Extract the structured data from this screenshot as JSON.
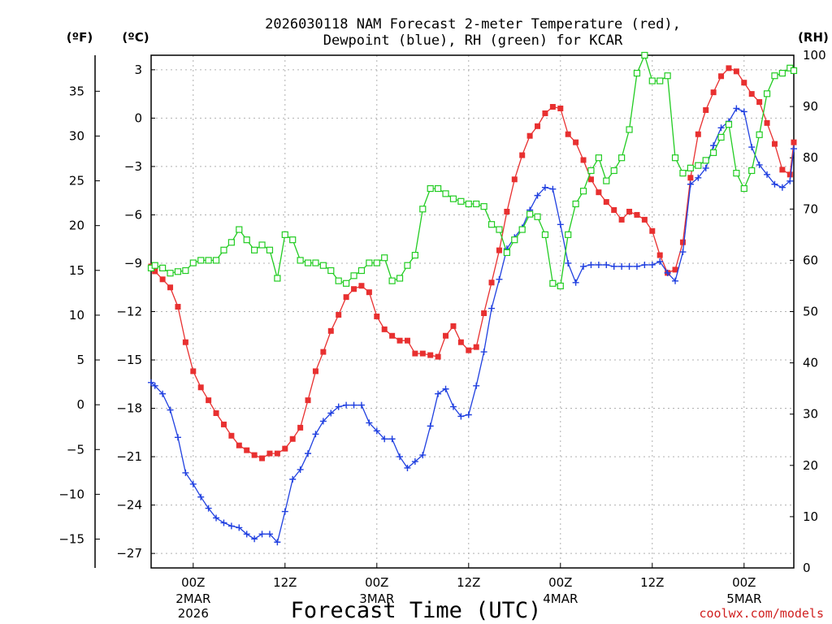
{
  "chart_data": {
    "type": "line",
    "title_lines": [
      "2026030118 NAM Forecast 2-meter Temperature (red),",
      "Dewpoint (blue), RH (green) for KCAR"
    ],
    "xlabel": "Forecast Time (UTC)",
    "credit": "coolwx.com/models",
    "units": {
      "fahrenheit": "(ºF)",
      "celsius": "(ºC)",
      "rh": "(RH)"
    },
    "x_axis": {
      "range_hours": [
        -5.5,
        78.5
      ],
      "ticks": [
        {
          "hour": 0,
          "label": "00Z",
          "sub": [
            "2MAR",
            "2026"
          ]
        },
        {
          "hour": 12,
          "label": "12Z",
          "sub": []
        },
        {
          "hour": 24,
          "label": "00Z",
          "sub": [
            "3MAR"
          ]
        },
        {
          "hour": 36,
          "label": "12Z",
          "sub": []
        },
        {
          "hour": 48,
          "label": "00Z",
          "sub": [
            "4MAR"
          ]
        },
        {
          "hour": 60,
          "label": "12Z",
          "sub": []
        },
        {
          "hour": 72,
          "label": "00Z",
          "sub": [
            "5MAR"
          ]
        }
      ]
    },
    "y_celsius": {
      "range": [
        -27.9,
        3.9
      ],
      "ticks": [
        "3",
        "0",
        "−3",
        "−6",
        "−9",
        "−12",
        "−15",
        "−18",
        "−21",
        "−24",
        "−27"
      ],
      "tick_values": [
        3,
        0,
        -3,
        -6,
        -9,
        -12,
        -15,
        -18,
        -21,
        -24,
        -27
      ]
    },
    "y_fahrenheit": {
      "ticks": [
        "35",
        "30",
        "25",
        "20",
        "15",
        "10",
        "5",
        "0",
        "−5",
        "−10",
        "−15"
      ],
      "tick_values": [
        35,
        30,
        25,
        20,
        15,
        10,
        5,
        0,
        -5,
        -10,
        -15
      ]
    },
    "y_rh": {
      "range": [
        0,
        100
      ],
      "ticks": [
        "100",
        "90",
        "80",
        "70",
        "60",
        "50",
        "40",
        "30",
        "20",
        "10",
        "0"
      ],
      "tick_values": [
        100,
        90,
        80,
        70,
        60,
        50,
        40,
        30,
        20,
        10,
        0
      ]
    },
    "series": [
      {
        "name": "Temperature",
        "unit": "C",
        "color": "#e83030",
        "marker": "filled-square",
        "points": [
          [
            -5.5,
            -9.2
          ],
          [
            -5,
            -9.5
          ],
          [
            -4,
            -10
          ],
          [
            -3,
            -10.5
          ],
          [
            -2,
            -11.7
          ],
          [
            -1,
            -13.9
          ],
          [
            0,
            -15.7
          ],
          [
            1,
            -16.7
          ],
          [
            2,
            -17.5
          ],
          [
            3,
            -18.3
          ],
          [
            4,
            -19
          ],
          [
            5,
            -19.7
          ],
          [
            6,
            -20.3
          ],
          [
            7,
            -20.6
          ],
          [
            8,
            -20.9
          ],
          [
            9,
            -21.1
          ],
          [
            10,
            -20.8
          ],
          [
            11,
            -20.8
          ],
          [
            12,
            -20.5
          ],
          [
            13,
            -19.9
          ],
          [
            14,
            -19.2
          ],
          [
            15,
            -17.5
          ],
          [
            16,
            -15.7
          ],
          [
            17,
            -14.5
          ],
          [
            18,
            -13.2
          ],
          [
            19,
            -12.2
          ],
          [
            20,
            -11.1
          ],
          [
            21,
            -10.6
          ],
          [
            22,
            -10.4
          ],
          [
            23,
            -10.8
          ],
          [
            24,
            -12.3
          ],
          [
            25,
            -13.1
          ],
          [
            26,
            -13.5
          ],
          [
            27,
            -13.8
          ],
          [
            28,
            -13.8
          ],
          [
            29,
            -14.6
          ],
          [
            30,
            -14.6
          ],
          [
            31,
            -14.7
          ],
          [
            32,
            -14.8
          ],
          [
            33,
            -13.5
          ],
          [
            34,
            -12.9
          ],
          [
            35,
            -13.9
          ],
          [
            36,
            -14.4
          ],
          [
            37,
            -14.2
          ],
          [
            38,
            -12.1
          ],
          [
            39,
            -10.2
          ],
          [
            40,
            -8.2
          ],
          [
            41,
            -5.8
          ],
          [
            42,
            -3.8
          ],
          [
            43,
            -2.3
          ],
          [
            44,
            -1.1
          ],
          [
            45,
            -0.5
          ],
          [
            46,
            0.3
          ],
          [
            47,
            0.7
          ],
          [
            48,
            0.6
          ],
          [
            49,
            -1
          ],
          [
            50,
            -1.5
          ],
          [
            51,
            -2.6
          ],
          [
            52,
            -3.8
          ],
          [
            53,
            -4.6
          ],
          [
            54,
            -5.2
          ],
          [
            55,
            -5.7
          ],
          [
            56,
            -6.3
          ],
          [
            57,
            -5.8
          ],
          [
            58,
            -6
          ],
          [
            59,
            -6.3
          ],
          [
            60,
            -7
          ],
          [
            61,
            -8.5
          ],
          [
            62,
            -9.6
          ],
          [
            63,
            -9.4
          ],
          [
            64,
            -7.7
          ],
          [
            65,
            -3.7
          ],
          [
            66,
            -1.0
          ],
          [
            67,
            0.5
          ],
          [
            68,
            1.6
          ],
          [
            69,
            2.6
          ],
          [
            70,
            3.1
          ],
          [
            71,
            2.9
          ],
          [
            72,
            2.2
          ],
          [
            73,
            1.5
          ],
          [
            74,
            1.0
          ],
          [
            75,
            -0.3
          ],
          [
            76,
            -1.6
          ],
          [
            77,
            -3.2
          ],
          [
            78,
            -3.5
          ],
          [
            78.5,
            -1.5
          ]
        ]
      },
      {
        "name": "Dewpoint",
        "unit": "C",
        "color": "#2040e0",
        "marker": "plus",
        "points": [
          [
            -5.5,
            -16.4
          ],
          [
            -5,
            -16.6
          ],
          [
            -4,
            -17.1
          ],
          [
            -3,
            -18.1
          ],
          [
            -2,
            -19.8
          ],
          [
            -1,
            -22
          ],
          [
            0,
            -22.7
          ],
          [
            1,
            -23.5
          ],
          [
            2,
            -24.2
          ],
          [
            3,
            -24.8
          ],
          [
            4,
            -25.1
          ],
          [
            5,
            -25.3
          ],
          [
            6,
            -25.4
          ],
          [
            7,
            -25.8
          ],
          [
            8,
            -26.1
          ],
          [
            9,
            -25.8
          ],
          [
            10,
            -25.8
          ],
          [
            11,
            -26.3
          ],
          [
            12,
            -24.4
          ],
          [
            13,
            -22.4
          ],
          [
            14,
            -21.8
          ],
          [
            15,
            -20.8
          ],
          [
            16,
            -19.6
          ],
          [
            17,
            -18.8
          ],
          [
            18,
            -18.3
          ],
          [
            19,
            -17.9
          ],
          [
            20,
            -17.8
          ],
          [
            21,
            -17.8
          ],
          [
            22,
            -17.8
          ],
          [
            23,
            -18.9
          ],
          [
            24,
            -19.4
          ],
          [
            25,
            -19.9
          ],
          [
            26,
            -19.9
          ],
          [
            27,
            -21
          ],
          [
            28,
            -21.7
          ],
          [
            29,
            -21.3
          ],
          [
            30,
            -20.9
          ],
          [
            31,
            -19.1
          ],
          [
            32,
            -17.1
          ],
          [
            33,
            -16.8
          ],
          [
            34,
            -17.9
          ],
          [
            35,
            -18.5
          ],
          [
            36,
            -18.4
          ],
          [
            37,
            -16.6
          ],
          [
            38,
            -14.5
          ],
          [
            39,
            -11.8
          ],
          [
            40,
            -10
          ],
          [
            41,
            -8.1
          ],
          [
            42,
            -7.4
          ],
          [
            43,
            -6.8
          ],
          [
            44,
            -5.7
          ],
          [
            45,
            -4.8
          ],
          [
            46,
            -4.3
          ],
          [
            47,
            -4.4
          ],
          [
            48,
            -6.6
          ],
          [
            49,
            -9
          ],
          [
            50,
            -10.2
          ],
          [
            51,
            -9.2
          ],
          [
            52,
            -9.1
          ],
          [
            53,
            -9.1
          ],
          [
            54,
            -9.1
          ],
          [
            55,
            -9.2
          ],
          [
            56,
            -9.2
          ],
          [
            57,
            -9.2
          ],
          [
            58,
            -9.2
          ],
          [
            59,
            -9.1
          ],
          [
            60,
            -9.1
          ],
          [
            61,
            -8.9
          ],
          [
            62,
            -9.6
          ],
          [
            63,
            -10.1
          ],
          [
            64,
            -8.3
          ],
          [
            65,
            -4.1
          ],
          [
            66,
            -3.7
          ],
          [
            67,
            -3.1
          ],
          [
            68,
            -1.7
          ],
          [
            69,
            -0.6
          ],
          [
            70,
            -0.2
          ],
          [
            71,
            0.6
          ],
          [
            72,
            0.4
          ],
          [
            73,
            -1.8
          ],
          [
            74,
            -2.9
          ],
          [
            75,
            -3.5
          ],
          [
            76,
            -4.1
          ],
          [
            77,
            -4.3
          ],
          [
            78,
            -3.9
          ],
          [
            78.5,
            -1.9
          ]
        ]
      },
      {
        "name": "Relative Humidity",
        "unit": "%",
        "color": "#22cc22",
        "marker": "hollow-square",
        "points": [
          [
            -5.5,
            58.5
          ],
          [
            -5,
            59
          ],
          [
            -4,
            58.5
          ],
          [
            -3,
            57.5
          ],
          [
            -2,
            57.8
          ],
          [
            -1,
            58
          ],
          [
            0,
            59.5
          ],
          [
            1,
            60
          ],
          [
            2,
            60
          ],
          [
            3,
            60
          ],
          [
            4,
            62
          ],
          [
            5,
            63.5
          ],
          [
            6,
            66
          ],
          [
            7,
            64
          ],
          [
            8,
            62
          ],
          [
            9,
            63
          ],
          [
            10,
            62
          ],
          [
            11,
            56.5
          ],
          [
            12,
            65
          ],
          [
            13,
            64
          ],
          [
            14,
            60
          ],
          [
            15,
            59.5
          ],
          [
            16,
            59.5
          ],
          [
            17,
            59
          ],
          [
            18,
            58
          ],
          [
            19,
            56
          ],
          [
            20,
            55.5
          ],
          [
            21,
            57
          ],
          [
            22,
            58
          ],
          [
            23,
            59.5
          ],
          [
            24,
            59.5
          ],
          [
            25,
            60.5
          ],
          [
            26,
            56
          ],
          [
            27,
            56.5
          ],
          [
            28,
            59
          ],
          [
            29,
            61
          ],
          [
            30,
            70
          ],
          [
            31,
            74
          ],
          [
            32,
            74
          ],
          [
            33,
            73
          ],
          [
            34,
            72
          ],
          [
            35,
            71.5
          ],
          [
            36,
            71
          ],
          [
            37,
            71
          ],
          [
            38,
            70.5
          ],
          [
            39,
            67
          ],
          [
            40,
            66
          ],
          [
            41,
            61.5
          ],
          [
            42,
            64
          ],
          [
            43,
            66
          ],
          [
            44,
            69
          ],
          [
            45,
            68.5
          ],
          [
            46,
            65
          ],
          [
            47,
            55.5
          ],
          [
            48,
            55
          ],
          [
            49,
            65
          ],
          [
            50,
            71
          ],
          [
            51,
            73.5
          ],
          [
            52,
            77.5
          ],
          [
            53,
            80
          ],
          [
            54,
            75.5
          ],
          [
            55,
            77.5
          ],
          [
            56,
            80
          ],
          [
            57,
            85.5
          ],
          [
            58,
            96.5
          ],
          [
            59,
            100
          ],
          [
            60,
            95
          ],
          [
            61,
            95
          ],
          [
            62,
            96
          ],
          [
            63,
            80
          ],
          [
            64,
            77
          ],
          [
            65,
            78
          ],
          [
            66,
            78.5
          ],
          [
            67,
            79.5
          ],
          [
            68,
            81
          ],
          [
            69,
            84
          ],
          [
            70,
            86.5
          ],
          [
            71,
            77
          ],
          [
            72,
            74
          ],
          [
            73,
            77.5
          ],
          [
            74,
            84.5
          ],
          [
            75,
            92.5
          ],
          [
            76,
            96
          ],
          [
            77,
            96.5
          ],
          [
            78,
            97.5
          ],
          [
            78.5,
            97
          ]
        ]
      }
    ]
  }
}
